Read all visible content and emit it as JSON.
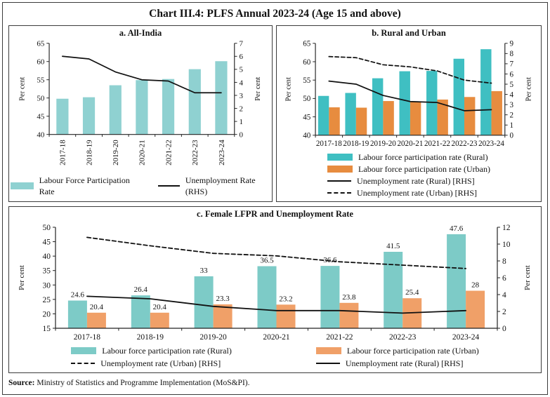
{
  "title": "Chart III.4: PLFS Annual 2023-24 (Age 15 and above)",
  "source": {
    "label": "Source:",
    "text": " Ministry of Statistics and Programme Implementation (MoS&PI)."
  },
  "colors": {
    "teal_all_india": "#8FD1D1",
    "teal_rural": "#3FBFC2",
    "orange_urban": "#E78C3F",
    "teal_rural_female": "#7DCBC7",
    "orange_urban_female": "#F0A068",
    "line_black": "#111111",
    "border": "#3c3c3c"
  },
  "chart_data": [
    {
      "id": "a",
      "type": "bar+line",
      "title": "a. All-India",
      "categories": [
        "2017-18",
        "2018-19",
        "2019-20",
        "2020-21",
        "2021-22",
        "2022-23",
        "2023-24"
      ],
      "left_axis": {
        "label": "Per cent",
        "min": 40,
        "max": 65,
        "step": 5
      },
      "right_axis": {
        "label": "Per cent",
        "min": 0,
        "max": 7,
        "step": 1
      },
      "grid": false,
      "legend_position": "bottom-row",
      "x_labels_rotated": true,
      "series": [
        {
          "name": "Labour Force Participation Rate",
          "type": "bar",
          "axis": "left",
          "color": "#8FD1D1",
          "values": [
            49.8,
            50.2,
            53.5,
            54.9,
            55.2,
            57.9,
            60.1
          ]
        },
        {
          "name": "Unemployment Rate (RHS)",
          "type": "line",
          "style": "solid",
          "axis": "right",
          "color": "#111111",
          "values": [
            6.0,
            5.8,
            4.8,
            4.2,
            4.1,
            3.2,
            3.2
          ]
        }
      ]
    },
    {
      "id": "b",
      "type": "bar+line",
      "title": "b. Rural and Urban",
      "categories": [
        "2017-18",
        "2018-19",
        "2019-20",
        "2020-21",
        "2021-22",
        "2022-23",
        "2023-24"
      ],
      "left_axis": {
        "label": "Per cent",
        "min": 40,
        "max": 65,
        "step": 5
      },
      "right_axis": {
        "label": "Per cent",
        "min": 0,
        "max": 9,
        "step": 1
      },
      "grid": false,
      "legend_position": "bottom-column",
      "x_labels_rotated": false,
      "series": [
        {
          "name": "Labour force participation rate (Rural)",
          "type": "bar",
          "axis": "left",
          "color": "#3FBFC2",
          "values": [
            50.7,
            51.5,
            55.5,
            57.4,
            57.5,
            60.8,
            63.4
          ]
        },
        {
          "name": "Labour force participation rate (Urban)",
          "type": "bar",
          "axis": "left",
          "color": "#E78C3F",
          "values": [
            47.6,
            47.5,
            49.3,
            49.1,
            49.7,
            50.4,
            52.0
          ]
        },
        {
          "name": "Unemployment rate (Rural) [RHS]",
          "type": "line",
          "style": "solid",
          "axis": "right",
          "color": "#111111",
          "values": [
            5.3,
            5.0,
            3.9,
            3.3,
            3.2,
            2.4,
            2.5
          ]
        },
        {
          "name": "Unemployment rate (Urban) [RHS]",
          "type": "line",
          "style": "dashed",
          "axis": "right",
          "color": "#111111",
          "values": [
            7.7,
            7.6,
            6.9,
            6.7,
            6.3,
            5.4,
            5.1
          ]
        }
      ]
    },
    {
      "id": "c",
      "type": "bar+line",
      "title": "c. Female LFPR and Unemployment Rate",
      "categories": [
        "2017-18",
        "2018-19",
        "2019-20",
        "2020-21",
        "2021-22",
        "2022-23",
        "2023-24"
      ],
      "left_axis": {
        "label": "Per cent",
        "min": 15,
        "max": 50,
        "step": 5
      },
      "right_axis": {
        "label": "Per cent",
        "min": 0,
        "max": 12,
        "step": 2
      },
      "grid": false,
      "legend_position": "bottom-two-columns",
      "x_labels_rotated": false,
      "series": [
        {
          "name": "Labour force participation rate (Rural)",
          "type": "bar",
          "axis": "left",
          "color": "#7DCBC7",
          "values": [
            24.6,
            26.4,
            33,
            36.5,
            36.6,
            41.5,
            47.6
          ],
          "show_labels": true,
          "labels": [
            "24.6",
            "26.4",
            "33",
            "36.5",
            "36.6",
            "41.5",
            "47.6"
          ]
        },
        {
          "name": "Labour force participation rate (Urban)",
          "type": "bar",
          "axis": "left",
          "color": "#F0A068",
          "values": [
            20.4,
            20.4,
            23.3,
            23.2,
            23.8,
            25.4,
            28
          ],
          "show_labels": true,
          "labels": [
            "20.4",
            "20.4",
            "23.3",
            "23.2",
            "23.8",
            "25.4",
            "28"
          ]
        },
        {
          "name": "Unemployment rate (Urban) [RHS]",
          "type": "line",
          "style": "dashed",
          "axis": "right",
          "color": "#111111",
          "values": [
            10.8,
            9.8,
            8.9,
            8.6,
            7.9,
            7.5,
            7.1
          ]
        },
        {
          "name": "Unemployment rate (Rural) [RHS]",
          "type": "line",
          "style": "solid",
          "axis": "right",
          "color": "#111111",
          "values": [
            3.8,
            3.5,
            2.6,
            2.1,
            2.1,
            1.8,
            2.1
          ]
        }
      ]
    }
  ]
}
